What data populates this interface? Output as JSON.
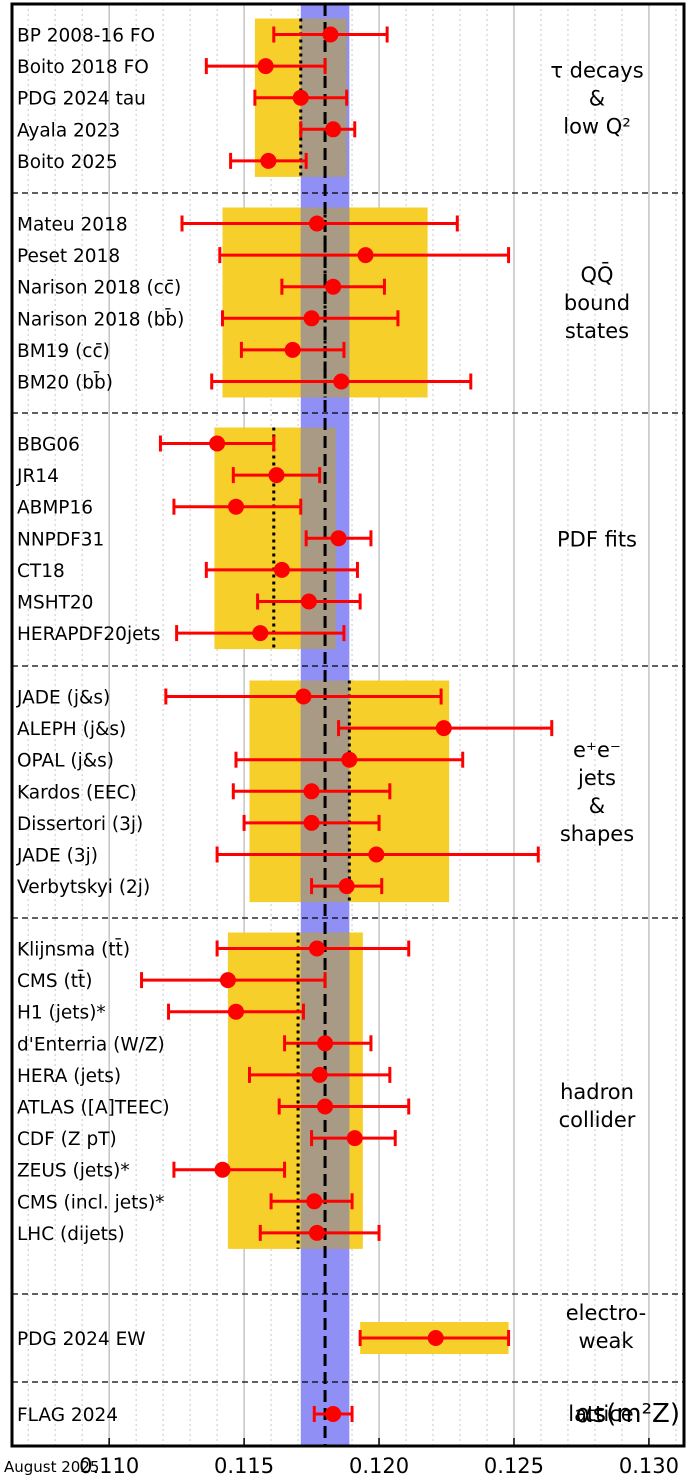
{
  "chart_data": {
    "type": "scatter",
    "title": "",
    "xlabel": "αs(m²Z)",
    "xlim": [
      0.1064,
      0.1313
    ],
    "x_ticks": [
      0.11,
      0.115,
      0.12,
      0.125,
      0.13
    ],
    "x_tick_labels": [
      "0.110",
      "0.115",
      "0.120",
      "0.125",
      "0.130"
    ],
    "world_average": {
      "value": 0.118,
      "err": 0.0009
    },
    "groups": [
      {
        "label_lines": [
          "τ decays",
          "&",
          "low Q²"
        ],
        "band": [
          0.1154,
          0.1188
        ],
        "avg": 0.1171,
        "points": [
          {
            "label": "BP 2008-16 FO",
            "value": 0.1182,
            "lo": 0.1161,
            "hi": 0.1203
          },
          {
            "label": "Boito 2018 FO",
            "value": 0.1158,
            "lo": 0.1136,
            "hi": 0.118
          },
          {
            "label": "PDG 2024 tau",
            "value": 0.1171,
            "lo": 0.1154,
            "hi": 0.1188
          },
          {
            "label": "Ayala 2023",
            "value": 0.1183,
            "lo": 0.1171,
            "hi": 0.1191
          },
          {
            "label": "Boito 2025",
            "value": 0.1159,
            "lo": 0.1145,
            "hi": 0.1173
          }
        ]
      },
      {
        "label_lines": [
          "QQ̄",
          "bound",
          "states"
        ],
        "band": [
          0.1142,
          0.1218
        ],
        "avg": 0.118,
        "points": [
          {
            "label": "Mateu 2018",
            "value": 0.1177,
            "lo": 0.1127,
            "hi": 0.1229
          },
          {
            "label": "Peset 2018",
            "value": 0.1195,
            "lo": 0.1141,
            "hi": 0.1248
          },
          {
            "label": "Narison 2018 (cc̄)",
            "value": 0.1183,
            "lo": 0.1164,
            "hi": 0.1202
          },
          {
            "label": "Narison 2018 (bb̄)",
            "value": 0.1175,
            "lo": 0.1142,
            "hi": 0.1207
          },
          {
            "label": "BM19 (cc̄)",
            "value": 0.1168,
            "lo": 0.1149,
            "hi": 0.1187
          },
          {
            "label": "BM20 (bb̄)",
            "value": 0.1186,
            "lo": 0.1138,
            "hi": 0.1234
          }
        ]
      },
      {
        "label_lines": [
          "PDF fits"
        ],
        "band": [
          0.1139,
          0.1184
        ],
        "avg": 0.1161,
        "points": [
          {
            "label": "BBG06",
            "value": 0.114,
            "lo": 0.1119,
            "hi": 0.1161
          },
          {
            "label": "JR14",
            "value": 0.1162,
            "lo": 0.1146,
            "hi": 0.1178
          },
          {
            "label": "ABMP16",
            "value": 0.1147,
            "lo": 0.1124,
            "hi": 0.1171
          },
          {
            "label": "NNPDF31",
            "value": 0.1185,
            "lo": 0.1173,
            "hi": 0.1197
          },
          {
            "label": "CT18",
            "value": 0.1164,
            "lo": 0.1136,
            "hi": 0.1192
          },
          {
            "label": "MSHT20",
            "value": 0.1174,
            "lo": 0.1155,
            "hi": 0.1193
          },
          {
            "label": "HERAPDF20jets",
            "value": 0.1156,
            "lo": 0.1125,
            "hi": 0.1187
          }
        ]
      },
      {
        "label_lines": [
          "e⁺e⁻",
          "jets",
          "&",
          "shapes"
        ],
        "band": [
          0.1152,
          0.1226
        ],
        "avg": 0.1189,
        "points": [
          {
            "label": "JADE (j&s)",
            "value": 0.1172,
            "lo": 0.1121,
            "hi": 0.1223
          },
          {
            "label": "ALEPH (j&s)",
            "value": 0.1224,
            "lo": 0.1185,
            "hi": 0.1264
          },
          {
            "label": "OPAL (j&s)",
            "value": 0.1189,
            "lo": 0.1147,
            "hi": 0.1231
          },
          {
            "label": "Kardos (EEC)",
            "value": 0.1175,
            "lo": 0.1146,
            "hi": 0.1204
          },
          {
            "label": "Dissertori (3j)",
            "value": 0.1175,
            "lo": 0.115,
            "hi": 0.12
          },
          {
            "label": "JADE (3j)",
            "value": 0.1199,
            "lo": 0.114,
            "hi": 0.1259
          },
          {
            "label": "Verbytskyi (2j)",
            "value": 0.1188,
            "lo": 0.1175,
            "hi": 0.1201
          }
        ]
      },
      {
        "label_lines": [
          "hadron",
          "collider"
        ],
        "band": [
          0.1144,
          0.1194
        ],
        "avg": 0.117,
        "points": [
          {
            "label": "Klijnsma (tt̄)",
            "value": 0.1177,
            "lo": 0.114,
            "hi": 0.1211
          },
          {
            "label": "CMS (tt̄)",
            "value": 0.1144,
            "lo": 0.1112,
            "hi": 0.118
          },
          {
            "label": "H1 (jets)*",
            "value": 0.1147,
            "lo": 0.1122,
            "hi": 0.1172
          },
          {
            "label": "d'Enterria (W/Z)",
            "value": 0.118,
            "lo": 0.1165,
            "hi": 0.1197
          },
          {
            "label": "HERA (jets)",
            "value": 0.1178,
            "lo": 0.1152,
            "hi": 0.1204
          },
          {
            "label": "ATLAS ([A]TEEC)",
            "value": 0.118,
            "lo": 0.1163,
            "hi": 0.1211
          },
          {
            "label": "CDF (Z pT)",
            "value": 0.1191,
            "lo": 0.1175,
            "hi": 0.1206
          },
          {
            "label": "ZEUS (jets)*",
            "value": 0.1142,
            "lo": 0.1124,
            "hi": 0.1165
          },
          {
            "label": "CMS (incl. jets)*",
            "value": 0.1176,
            "lo": 0.116,
            "hi": 0.119
          },
          {
            "label": "LHC (dijets)",
            "value": 0.1177,
            "lo": 0.1156,
            "hi": 0.12
          }
        ]
      },
      {
        "label_lines": [
          "electro-",
          "weak"
        ],
        "band": [
          0.1193,
          0.1248
        ],
        "avg": null,
        "points": [
          {
            "label": "PDG 2024 EW",
            "value": 0.1221,
            "lo": 0.1193,
            "hi": 0.1248
          }
        ]
      },
      {
        "label_lines": [
          "lattice"
        ],
        "band": null,
        "avg": null,
        "points": [
          {
            "label": "FLAG 2024",
            "value": 0.1183,
            "lo": 0.1176,
            "hi": 0.119
          }
        ]
      }
    ],
    "colors": {
      "point": "#ff0000",
      "band": "#f7cf2a",
      "world_band": "#8f8ff5",
      "overlap": "#a89a85",
      "grid_major": "#b5b5b5",
      "grid_minor": "#c8c8c8"
    }
  },
  "footer": {
    "date": "August 2025"
  }
}
